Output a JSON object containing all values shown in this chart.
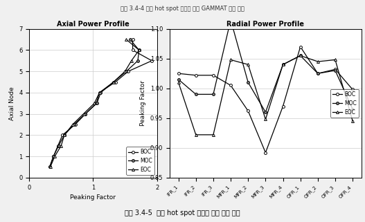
{
  "axial_title": "Axial Power Profile",
  "axial_xlabel": "Peaking Factor",
  "axial_ylabel": "Axial Node",
  "axial_xlim": [
    0.0,
    2.0
  ],
  "axial_ylim": [
    0,
    7
  ],
  "axial_yticks": [
    0,
    1,
    2,
    3,
    4,
    5,
    6,
    7
  ],
  "axial_xticks": [
    0.0,
    1.0,
    2.0
  ],
  "axial_nodes": [
    0.5,
    1.0,
    1.5,
    2.0,
    2.5,
    3.0,
    3.5,
    4.0,
    4.5,
    5.0,
    5.5,
    6.0,
    6.5
  ],
  "axial_pf_BOC": [
    0.32,
    0.38,
    0.45,
    0.52,
    0.72,
    0.88,
    1.05,
    1.1,
    1.35,
    1.55,
    1.92,
    1.62,
    1.62
  ],
  "axial_pf_MOC": [
    0.32,
    0.38,
    0.46,
    0.55,
    0.7,
    0.88,
    1.06,
    1.12,
    1.32,
    1.52,
    1.7,
    1.72,
    1.58
  ],
  "axial_pf_EOC": [
    0.33,
    0.4,
    0.5,
    0.55,
    0.68,
    0.85,
    1.02,
    1.1,
    1.32,
    1.5,
    1.6,
    1.72,
    1.52
  ],
  "radial_title": "Radial Power Profile",
  "radial_ylabel": "Peaking Factor",
  "radial_ylim": [
    0.85,
    1.1
  ],
  "radial_yticks": [
    0.85,
    0.9,
    0.95,
    1.0,
    1.05,
    1.1
  ],
  "radial_categories": [
    "IFR_1",
    "IFR_2",
    "IFR_3",
    "MFR_1",
    "MFR_2",
    "MFR_3",
    "MFR_4",
    "OFR_1",
    "OFR_2",
    "OFR_3",
    "OFR_4"
  ],
  "radial_BOC": [
    1.025,
    1.022,
    1.022,
    1.005,
    0.962,
    0.892,
    0.97,
    1.07,
    1.025,
    1.032,
    0.998
  ],
  "radial_MOC": [
    1.015,
    0.99,
    0.99,
    1.115,
    1.01,
    0.96,
    1.04,
    1.055,
    1.025,
    1.03,
    0.965
  ],
  "radial_EOC": [
    1.01,
    0.922,
    0.922,
    1.048,
    1.04,
    0.948,
    1.04,
    1.055,
    1.045,
    1.048,
    0.945
  ],
  "top_text": "교림 3.4-4 노심 hot spot 해석을 위한 GAMMAT 계산 스펙",
  "bottom_text": "그림 3.4-5  노심 hot spot 해석을 위한 출력 분포",
  "bg_color": "#f0f0f0",
  "plot_bg": "#ffffff"
}
